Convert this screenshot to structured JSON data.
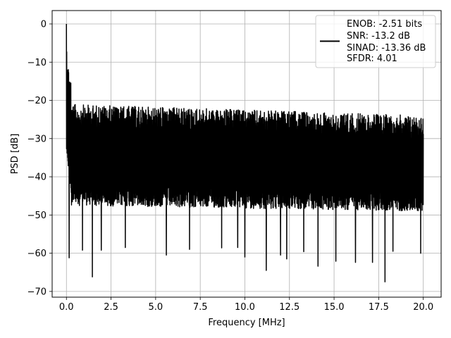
{
  "chart_data": {
    "type": "line",
    "title": "",
    "xlabel": "Frequency [MHz]",
    "ylabel": "PSD [dB]",
    "xlim": [
      -0.8,
      21.0
    ],
    "ylim": [
      -71.5,
      3.5
    ],
    "x_ticks": [
      0.0,
      2.5,
      5.0,
      7.5,
      10.0,
      12.5,
      15.0,
      17.5,
      20.0
    ],
    "x_tick_labels": [
      "0.0",
      "2.5",
      "5.0",
      "7.5",
      "10.0",
      "12.5",
      "15.0",
      "17.5",
      "20.0"
    ],
    "y_ticks": [
      0,
      -10,
      -20,
      -30,
      -40,
      -50,
      -60,
      -70
    ],
    "y_tick_labels": [
      "0",
      "−10",
      "−20",
      "−30",
      "−40",
      "−50",
      "−60",
      "−70"
    ],
    "grid": true,
    "legend_position": "top-right",
    "legend_lines": [
      "ENOB: -2.51 bits",
      "SNR: -13.2 dB",
      "SINAD: -13.36 dB",
      "SFDR: 4.01"
    ],
    "series": [
      {
        "color": "#000000",
        "x_range": [
          0.0,
          20.0
        ],
        "noise_floor_db": -33,
        "upper_envelope_db": -22.5,
        "lower_envelope_db": -45,
        "peak": {
          "x": 0.0,
          "y": 0.0
        },
        "low_spurs": [
          {
            "x": 0.15,
            "y": -61.2
          },
          {
            "x": 0.9,
            "y": -59.2
          },
          {
            "x": 1.45,
            "y": -66.2
          },
          {
            "x": 1.95,
            "y": -59.2
          },
          {
            "x": 3.3,
            "y": -58.5
          },
          {
            "x": 5.6,
            "y": -60.5
          },
          {
            "x": 6.9,
            "y": -59.0
          },
          {
            "x": 8.7,
            "y": -58.6
          },
          {
            "x": 9.6,
            "y": -58.5
          },
          {
            "x": 10.0,
            "y": -61.0
          },
          {
            "x": 11.2,
            "y": -64.5
          },
          {
            "x": 12.0,
            "y": -60.5
          },
          {
            "x": 12.35,
            "y": -61.5
          },
          {
            "x": 13.3,
            "y": -59.6
          },
          {
            "x": 14.1,
            "y": -63.4
          },
          {
            "x": 15.1,
            "y": -62.1
          },
          {
            "x": 16.2,
            "y": -62.4
          },
          {
            "x": 17.15,
            "y": -62.4
          },
          {
            "x": 17.85,
            "y": -67.5
          },
          {
            "x": 18.3,
            "y": -59.5
          },
          {
            "x": 19.85,
            "y": -60.0
          }
        ]
      }
    ]
  },
  "colors": {
    "line": "#000000",
    "grid": "#b0b0b0",
    "axes": "#000000",
    "legend_border": "#cccccc"
  }
}
